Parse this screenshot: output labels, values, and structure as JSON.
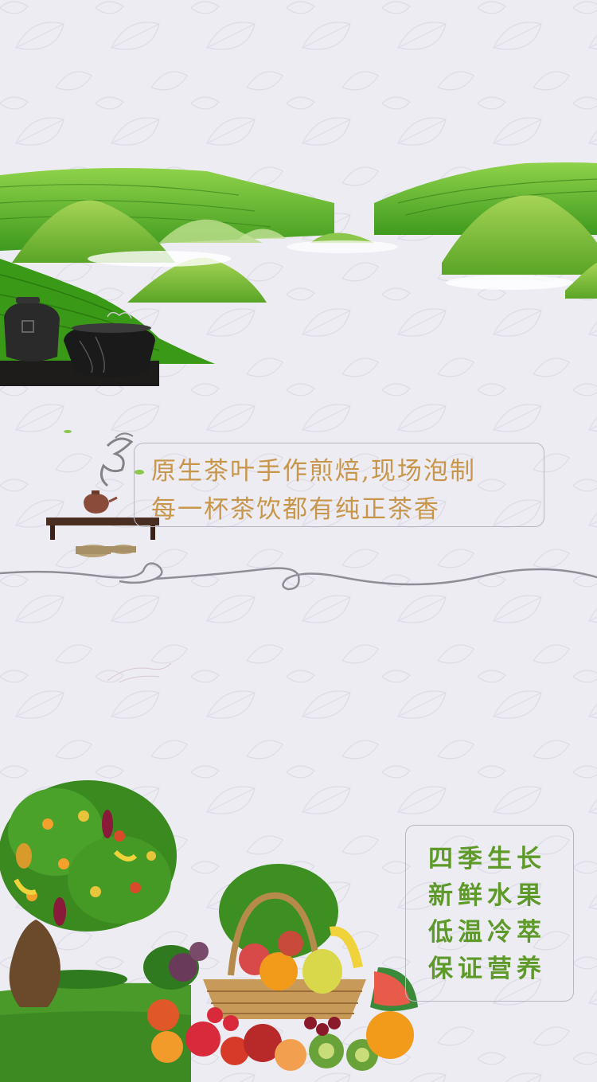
{
  "tea_caption": {
    "line1": "原生茶叶手作煎焙,现场泡制",
    "line2": "每一杯茶饮都有纯正茶香"
  },
  "fruit_caption": {
    "lines": [
      "四季生长",
      "新鲜水果",
      "低温冷萃",
      "保证营养"
    ]
  },
  "colors": {
    "background": "#edecf3",
    "tea_text": "#c8964a",
    "fruit_text": "#5e9a2a",
    "hill_green": "#5fb52a",
    "divider": "#8f8d96"
  }
}
